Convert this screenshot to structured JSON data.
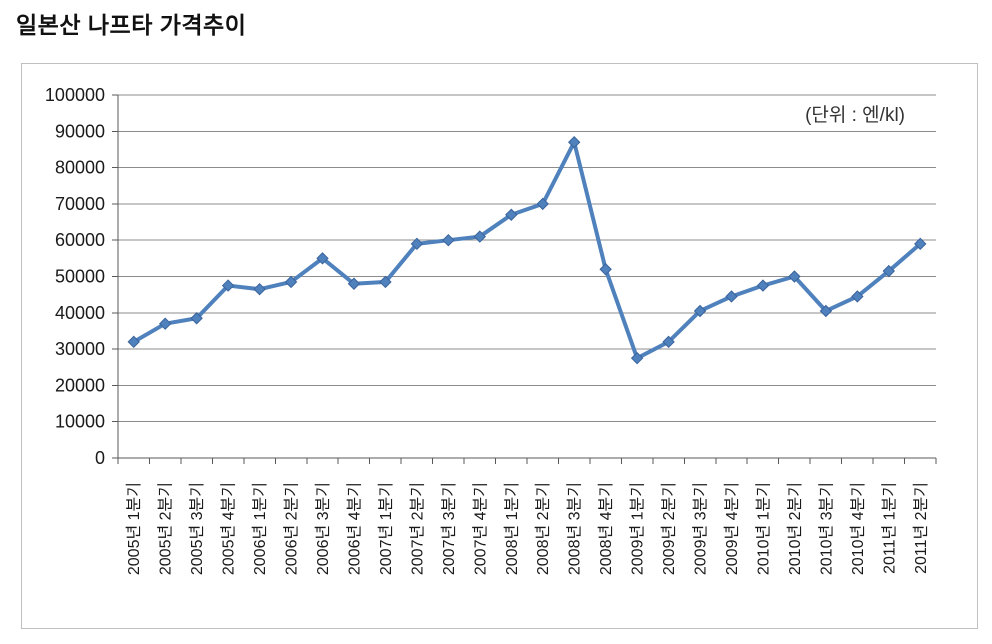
{
  "page": {
    "title": "일본산 나프타 가격추이"
  },
  "chart_data": {
    "type": "line",
    "title": "일본산 나프타 가격추이",
    "unit_label": "(단위 : 엔/kl)",
    "xlabel": "",
    "ylabel": "",
    "ylim": [
      0,
      100000
    ],
    "ytick_interval": 10000,
    "yticks": [
      0,
      10000,
      20000,
      30000,
      40000,
      50000,
      60000,
      70000,
      80000,
      90000,
      100000
    ],
    "grid": "horizontal",
    "legend": "none",
    "categories": [
      "2005년 1분기",
      "2005년 2분기",
      "2005년 3분기",
      "2005년 4분기",
      "2006년 1분기",
      "2006년 2분기",
      "2006년 3분기",
      "2006년 4분기",
      "2007년 1분기",
      "2007년 2분기",
      "2007년 3분기",
      "2007년 4분기",
      "2008년 1분기",
      "2008년 2분기",
      "2008년 3분기",
      "2008년 4분기",
      "2009년 1분기",
      "2009년 2분기",
      "2009년 3분기",
      "2009년 4분기",
      "2010년 1분기",
      "2010년 2분기",
      "2010년 3분기",
      "2010년 4분기",
      "2011년 1분기",
      "2011년 2분기"
    ],
    "series": [
      {
        "color": "#4F81BD",
        "marker": "diamond",
        "values": [
          32000,
          37000,
          38500,
          47500,
          46500,
          48500,
          55000,
          48000,
          48500,
          59000,
          60000,
          61000,
          67000,
          70000,
          87000,
          52000,
          27500,
          32000,
          40500,
          44500,
          47500,
          50000,
          40500,
          44500,
          51500,
          59000
        ]
      }
    ]
  },
  "colors": {
    "line": "#4F81BD",
    "marker_stroke": "#3A639C",
    "gridline": "#8C8C8C",
    "axis": "#595959",
    "tick": "#595959",
    "chart_border": "#C0C0C0",
    "text": "#1A1A1A",
    "background": "#FFFFFF"
  }
}
